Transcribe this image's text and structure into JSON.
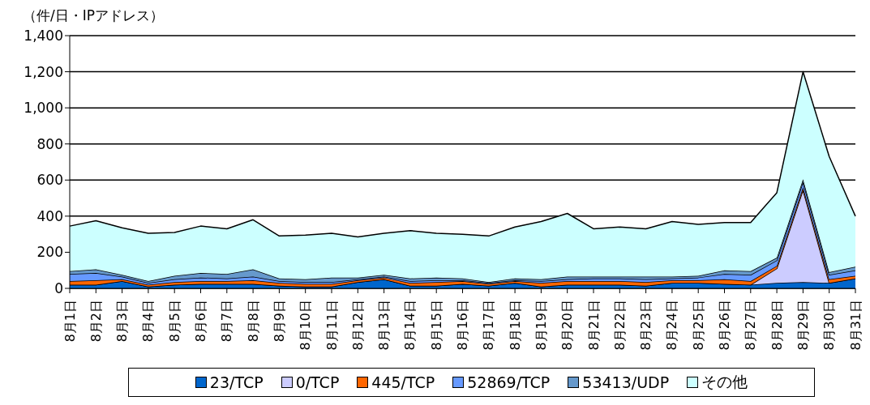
{
  "chart_data": {
    "type": "area",
    "stacked": true,
    "ylabel": "（件/日・IPアドレス）",
    "categories": [
      "8月1日",
      "8月2日",
      "8月3日",
      "8月4日",
      "8月5日",
      "8月6日",
      "8月7日",
      "8月8日",
      "8月9日",
      "8月10日",
      "8月11日",
      "8月12日",
      "8月13日",
      "8月14日",
      "8月15日",
      "8月16日",
      "8月17日",
      "8月18日",
      "8月19日",
      "8月20日",
      "8月21日",
      "8月22日",
      "8月23日",
      "8月24日",
      "8月25日",
      "8月26日",
      "8月27日",
      "8月28日",
      "8月29日",
      "8月30日",
      "8月31日"
    ],
    "series": [
      {
        "name": "23/TCP",
        "color": "#0066cc",
        "values": [
          20,
          20,
          40,
          10,
          20,
          25,
          25,
          25,
          15,
          10,
          10,
          35,
          50,
          15,
          15,
          25,
          15,
          30,
          10,
          20,
          20,
          20,
          15,
          30,
          30,
          25,
          20,
          30,
          35,
          30,
          55
        ]
      },
      {
        "name": "0/TCP",
        "color": "#ccccff",
        "values": [
          0,
          0,
          0,
          0,
          0,
          0,
          0,
          0,
          0,
          0,
          0,
          0,
          0,
          0,
          0,
          0,
          0,
          0,
          0,
          0,
          0,
          0,
          0,
          0,
          0,
          0,
          0,
          80,
          510,
          0,
          0
        ]
      },
      {
        "name": "445/TCP",
        "color": "#ff6600",
        "values": [
          20,
          25,
          10,
          10,
          15,
          15,
          15,
          20,
          15,
          15,
          15,
          10,
          10,
          15,
          20,
          15,
          10,
          10,
          20,
          20,
          20,
          20,
          20,
          15,
          15,
          25,
          20,
          15,
          15,
          20,
          15
        ]
      },
      {
        "name": "52869/TCP",
        "color": "#6699ff",
        "values": [
          40,
          40,
          15,
          10,
          15,
          20,
          15,
          20,
          10,
          10,
          10,
          5,
          5,
          10,
          10,
          5,
          5,
          5,
          10,
          10,
          15,
          15,
          15,
          10,
          15,
          30,
          35,
          30,
          30,
          25,
          30
        ]
      },
      {
        "name": "53413/UDP",
        "color": "#6699cc",
        "values": [
          15,
          20,
          10,
          10,
          20,
          25,
          25,
          40,
          15,
          15,
          25,
          10,
          10,
          15,
          15,
          10,
          5,
          10,
          10,
          15,
          10,
          10,
          15,
          10,
          10,
          20,
          20,
          15,
          15,
          15,
          20
        ]
      },
      {
        "name": "その他",
        "color": "#ccffff",
        "values": [
          250,
          270,
          260,
          265,
          240,
          260,
          250,
          275,
          235,
          245,
          245,
          225,
          230,
          265,
          245,
          245,
          255,
          285,
          320,
          350,
          265,
          275,
          265,
          305,
          285,
          265,
          270,
          360,
          595,
          640,
          280
        ]
      }
    ],
    "ylim": [
      0,
      1400
    ],
    "yticks": [
      {
        "value": 0,
        "label": "0"
      },
      {
        "value": 200,
        "label": "200"
      },
      {
        "value": 400,
        "label": "400"
      },
      {
        "value": 600,
        "label": "600"
      },
      {
        "value": 800,
        "label": "800"
      },
      {
        "value": 1000,
        "label": "1,000"
      },
      {
        "value": 1200,
        "label": "1,200"
      },
      {
        "value": 1400,
        "label": "1,400"
      }
    ],
    "grid": "y",
    "legend": "bottom"
  }
}
